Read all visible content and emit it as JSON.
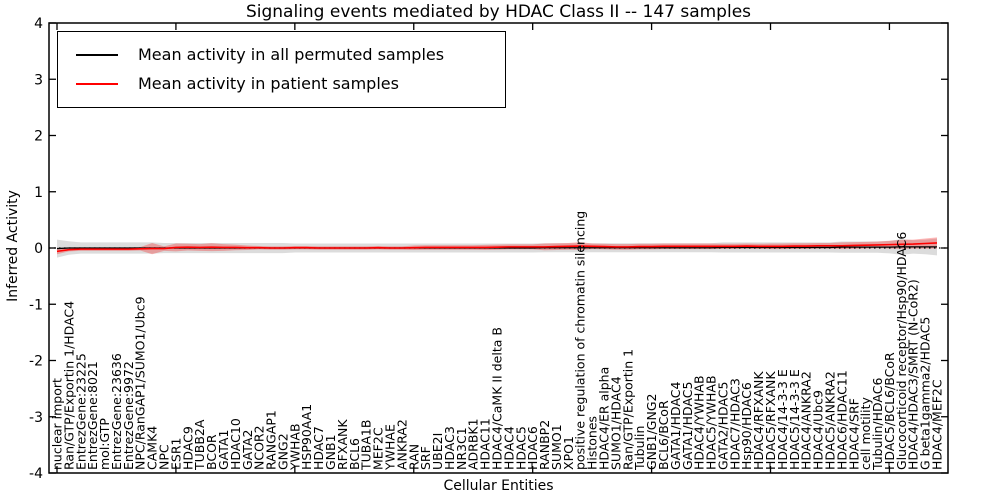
{
  "title": "Signaling events mediated by HDAC Class II -- 147 samples",
  "axes": {
    "xlabel": "Cellular Entities",
    "ylabel": "Inferred Activity"
  },
  "legend": {
    "items": [
      {
        "label": "Mean activity in all permuted samples",
        "color": "#000000"
      },
      {
        "label": "Mean activity in patient samples",
        "color": "#ff0000"
      }
    ]
  },
  "chart_data": {
    "type": "line",
    "title": "Signaling events mediated by HDAC Class II -- 147 samples",
    "xlabel": "Cellular Entities",
    "ylabel": "Inferred Activity",
    "ylim": [
      -4,
      4
    ],
    "yticks": [
      4,
      3,
      2,
      1,
      0,
      -1,
      -2,
      -3,
      -4
    ],
    "grid": false,
    "legend_position": "upper left",
    "zero_line": {
      "style": "dotted",
      "color": "#000000",
      "y": 0
    },
    "categories": [
      "nuclear import",
      "Ran/GTP/Exportin 1/HDAC4",
      "EntrezGene:23225",
      "EntrezGene:8021",
      "mol:GTP",
      "EntrezGene:23636",
      "EntrezGene:9972",
      "NPC/RanGAP1/SUMO1/Ubc9",
      "CAMK4",
      "NPC",
      "ESR1",
      "HDAC9",
      "TUBB2A",
      "BCOR",
      "GATA1",
      "HDAC10",
      "GATA2",
      "NCOR2",
      "RANGAP1",
      "GNG2",
      "YWHAB",
      "HSP90AA1",
      "HDAC7",
      "GNB1",
      "RFXANK",
      "BCL6",
      "TUBA1B",
      "MEF2C",
      "YWHAE",
      "ANKRA2",
      "RAN",
      "SRF",
      "UBE2I",
      "HDAC3",
      "NR3C1",
      "ADRBK1",
      "HDAC11",
      "HDAC4/CaMK II delta B",
      "HDAC4",
      "HDAC5",
      "HDAC6",
      "RANBP2",
      "SUMO1",
      "XPO1",
      "positive regulation of chromatin silencing",
      "Histones",
      "HDAC4/ER alpha",
      "SUMO1/HDAC4",
      "Ran/GTP/Exportin 1",
      "Tubulin",
      "GNB1/GNG2",
      "BCL6/BCoR",
      "GATA1/HDAC4",
      "GATA1/HDAC5",
      "HDAC4/YWHAB",
      "HDAC5/YWHAB",
      "GATA2/HDAC5",
      "HDAC7/HDAC3",
      "Hsp90/HDAC6",
      "HDAC4/RFXANK",
      "HDAC5/RFXANK",
      "HDAC4/14-3-3 E",
      "HDAC5/14-3-3 E",
      "HDAC4/ANKRA2",
      "HDAC4/Ubc9",
      "HDAC5/ANKRA2",
      "HDAC6/HDAC11",
      "HDAC4/SRF",
      "cell motility",
      "Tubulin/HDAC6",
      "HDAC5/BCL6/BCoR",
      "Glucocorticoid receptor/Hsp90/HDAC6",
      "HDAC4/HDAC3/SMRT (N-CoR2)",
      "G beta1gamma2/HDAC5",
      "HDAC4/MEF2C"
    ],
    "series": [
      {
        "name": "Mean activity in all permuted samples",
        "color": "#000000",
        "band_color": "rgba(140,140,140,0.30)",
        "values": [
          -0.01,
          0,
          0,
          0,
          0,
          0,
          0,
          0,
          0,
          0,
          0,
          0,
          0,
          0,
          0,
          0,
          0,
          0,
          0,
          0,
          0,
          0,
          0,
          0,
          0,
          0,
          0,
          0,
          0,
          0,
          0,
          0,
          0,
          0,
          0,
          0,
          0,
          0,
          0,
          0,
          0,
          0.005,
          0.005,
          0.005,
          0.005,
          0.005,
          0.005,
          0.005,
          0.005,
          0.005,
          0.005,
          0.005,
          0.005,
          0.005,
          0.005,
          0.005,
          0.01,
          0.01,
          0.01,
          0.01,
          0.01,
          0.01,
          0.01,
          0.01,
          0.01,
          0.01,
          0.015,
          0.015,
          0.015,
          0.015,
          0.015,
          0.02,
          0.02,
          0.02,
          0.02
        ],
        "band_halfwidth": [
          0.16,
          0.12,
          0.1,
          0.1,
          0.1,
          0.1,
          0.1,
          0.1,
          0.1,
          0.09,
          0.09,
          0.09,
          0.09,
          0.09,
          0.09,
          0.09,
          0.09,
          0.09,
          0.09,
          0.09,
          0.08,
          0.08,
          0.08,
          0.08,
          0.08,
          0.08,
          0.08,
          0.08,
          0.08,
          0.08,
          0.08,
          0.08,
          0.08,
          0.08,
          0.08,
          0.08,
          0.08,
          0.08,
          0.08,
          0.08,
          0.08,
          0.08,
          0.08,
          0.08,
          0.08,
          0.08,
          0.08,
          0.08,
          0.08,
          0.08,
          0.08,
          0.08,
          0.08,
          0.08,
          0.08,
          0.08,
          0.09,
          0.09,
          0.09,
          0.09,
          0.09,
          0.09,
          0.09,
          0.09,
          0.09,
          0.09,
          0.1,
          0.1,
          0.1,
          0.1,
          0.11,
          0.14,
          0.12,
          0.13,
          0.15
        ]
      },
      {
        "name": "Mean activity in patient samples",
        "color": "#ff0000",
        "band_color": "rgba(255,0,0,0.28)",
        "values": [
          -0.06,
          -0.03,
          -0.02,
          -0.02,
          -0.02,
          -0.02,
          -0.02,
          -0.015,
          -0.01,
          -0.01,
          0.01,
          0.015,
          0.01,
          0.015,
          0.01,
          0.01,
          0.005,
          0.005,
          0,
          0,
          0.005,
          0.005,
          0,
          0,
          0,
          0,
          0,
          0.005,
          0,
          0,
          0.005,
          0.01,
          0.01,
          0.01,
          0.01,
          0.01,
          0.01,
          0.015,
          0.02,
          0.02,
          0.02,
          0.02,
          0.025,
          0.03,
          0.035,
          0.03,
          0.025,
          0.02,
          0.02,
          0.025,
          0.025,
          0.03,
          0.03,
          0.03,
          0.03,
          0.03,
          0.03,
          0.03,
          0.035,
          0.03,
          0.03,
          0.03,
          0.035,
          0.035,
          0.04,
          0.04,
          0.04,
          0.045,
          0.05,
          0.055,
          0.06,
          0.065,
          0.07,
          0.08,
          0.09
        ],
        "band_halfwidth": [
          0.05,
          0.03,
          0.03,
          0.03,
          0.03,
          0.03,
          0.03,
          0.03,
          0.1,
          0.04,
          0.07,
          0.06,
          0.06,
          0.07,
          0.06,
          0.05,
          0.04,
          0.03,
          0.03,
          0.03,
          0.03,
          0.03,
          0.03,
          0.03,
          0.03,
          0.03,
          0.03,
          0.03,
          0.03,
          0.03,
          0.04,
          0.04,
          0.04,
          0.04,
          0.04,
          0.04,
          0.045,
          0.045,
          0.045,
          0.045,
          0.045,
          0.06,
          0.06,
          0.06,
          0.07,
          0.05,
          0.05,
          0.05,
          0.05,
          0.05,
          0.05,
          0.05,
          0.05,
          0.05,
          0.05,
          0.05,
          0.045,
          0.045,
          0.045,
          0.045,
          0.05,
          0.05,
          0.05,
          0.05,
          0.05,
          0.05,
          0.06,
          0.06,
          0.06,
          0.06,
          0.07,
          0.08,
          0.08,
          0.09,
          0.1
        ]
      }
    ]
  }
}
